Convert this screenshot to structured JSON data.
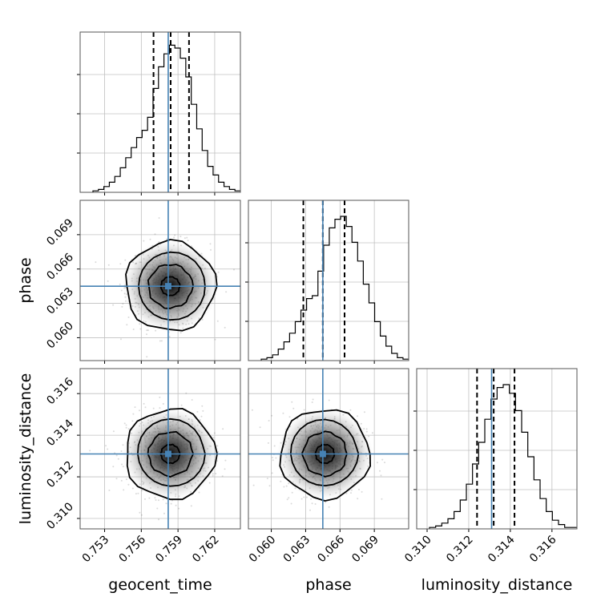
{
  "chart_data": {
    "type": "corner",
    "parameters": [
      "geocent_time",
      "phase",
      "luminosity_distance"
    ],
    "truths": {
      "geocent_time": 0.7582,
      "phase": 0.0645,
      "luminosity_distance": 0.3131
    },
    "quantiles": {
      "geocent_time": [
        0.757,
        0.7584,
        0.7599
      ],
      "phase": [
        0.0628,
        0.0645,
        0.0664
      ],
      "luminosity_distance": [
        0.3124,
        0.3132,
        0.3142
      ]
    },
    "ranges": {
      "geocent_time": [
        0.751,
        0.7641
      ],
      "phase": [
        0.058,
        0.072
      ],
      "luminosity_distance": [
        0.3095,
        0.3172
      ]
    },
    "ticks": {
      "geocent_time": [
        "0.753",
        "0.756",
        "0.759",
        "0.762"
      ],
      "phase": [
        "0.060",
        "0.063",
        "0.066",
        "0.069"
      ],
      "luminosity_distance": [
        "0.310",
        "0.312",
        "0.314",
        "0.316"
      ]
    },
    "histograms": {
      "geocent_time": [
        1,
        2,
        4,
        7,
        11,
        17,
        24,
        31,
        38,
        43,
        52,
        72,
        87,
        96,
        102,
        100,
        93,
        80,
        61,
        44,
        29,
        18,
        12,
        7,
        4,
        2,
        1
      ],
      "phase": [
        1,
        2,
        4,
        8,
        13,
        19,
        27,
        35,
        43,
        45,
        62,
        80,
        92,
        98,
        100,
        93,
        82,
        69,
        53,
        40,
        27,
        17,
        10,
        5,
        2,
        1
      ],
      "luminosity_distance": [
        1,
        2,
        4,
        7,
        12,
        20,
        31,
        45,
        60,
        76,
        90,
        98,
        100,
        94,
        82,
        67,
        50,
        34,
        21,
        12,
        6,
        3,
        1,
        1
      ]
    },
    "grid": true,
    "colors": {
      "truth": "#4682b4",
      "contour": "#000000",
      "hist": "#000000",
      "grid": "#c0c0c0"
    }
  }
}
